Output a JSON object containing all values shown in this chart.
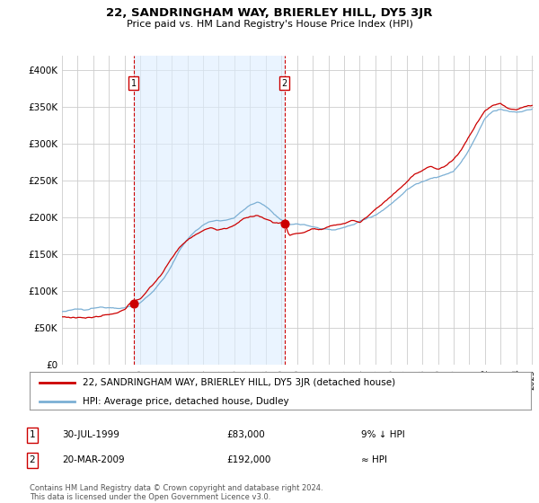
{
  "title": "22, SANDRINGHAM WAY, BRIERLEY HILL, DY5 3JR",
  "subtitle": "Price paid vs. HM Land Registry's House Price Index (HPI)",
  "legend_line1": "22, SANDRINGHAM WAY, BRIERLEY HILL, DY5 3JR (detached house)",
  "legend_line2": "HPI: Average price, detached house, Dudley",
  "annotation1_date": "30-JUL-1999",
  "annotation1_price": "£83,000",
  "annotation1_hpi": "9% ↓ HPI",
  "annotation2_date": "20-MAR-2009",
  "annotation2_price": "£192,000",
  "annotation2_hpi": "≈ HPI",
  "footer": "Contains HM Land Registry data © Crown copyright and database right 2024.\nThis data is licensed under the Open Government Licence v3.0.",
  "red_color": "#cc0000",
  "blue_color": "#7bafd4",
  "blue_fill": "#ddeeff",
  "background_color": "#ffffff",
  "grid_color": "#cccccc",
  "purchase1_year": 1999.58,
  "purchase1_price": 83000,
  "purchase2_year": 2009.21,
  "purchase2_price": 192000
}
